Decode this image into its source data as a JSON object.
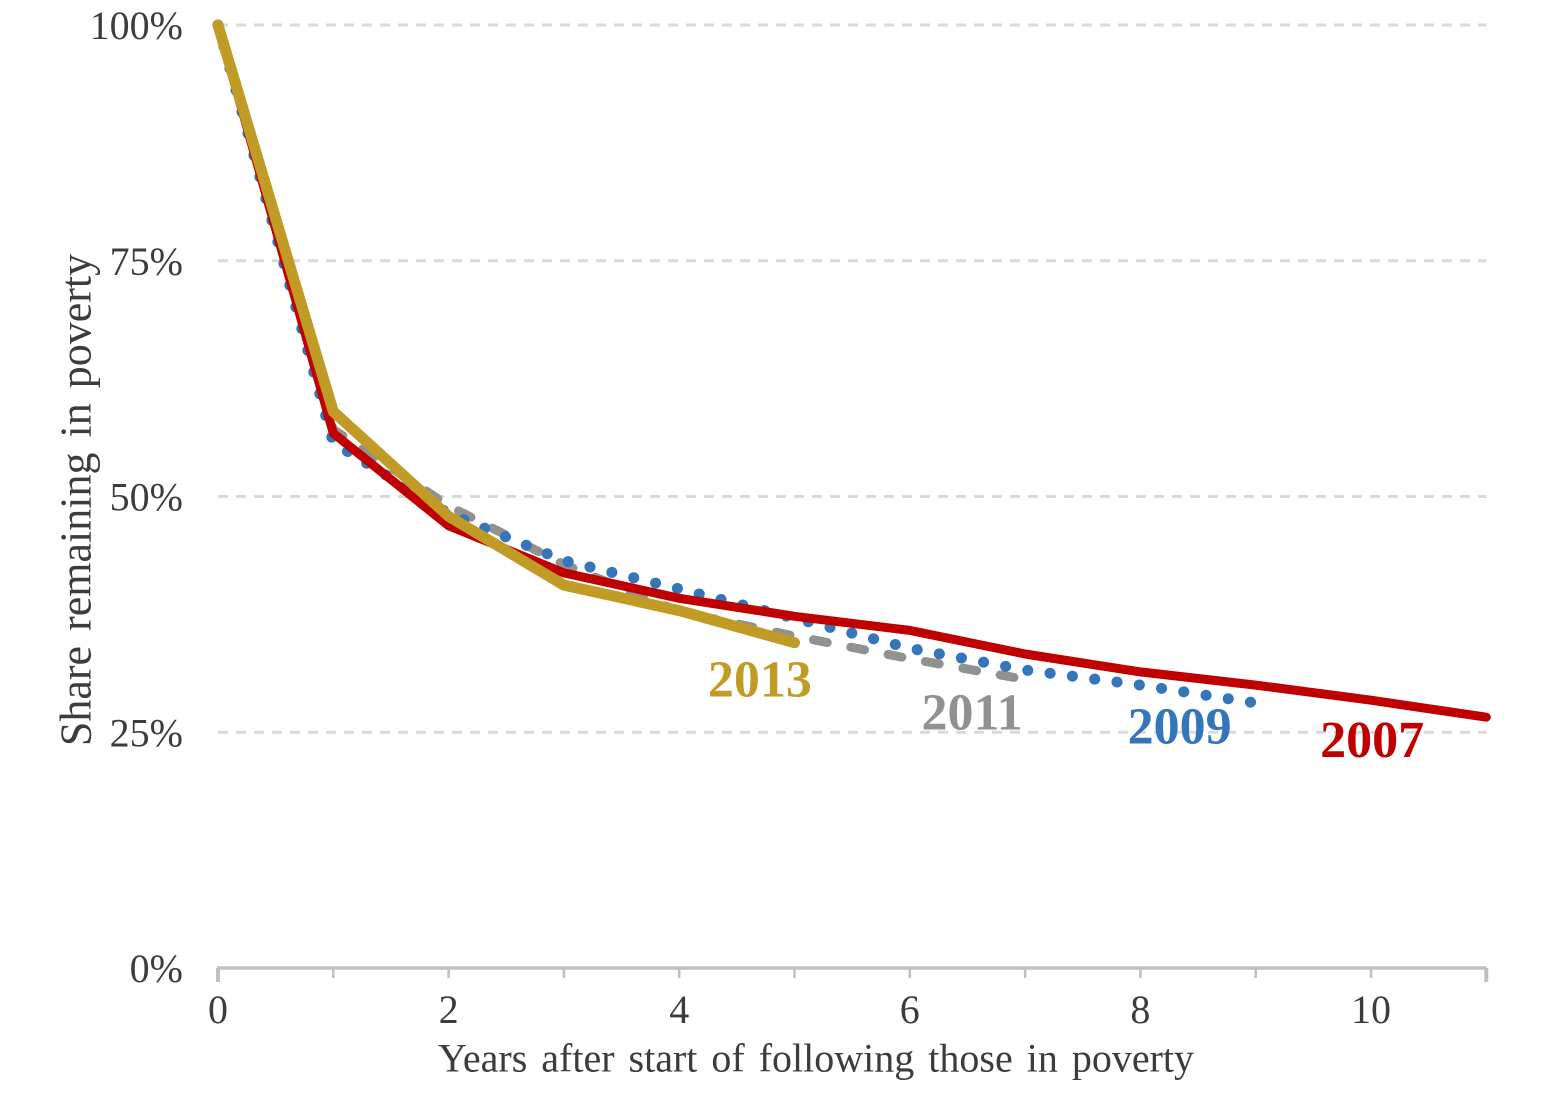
{
  "figure": {
    "y_axis_title": "Share remaining in poverty",
    "x_axis_title": "Years after start of following those in poverty"
  },
  "chart_data": {
    "type": "line",
    "title": "",
    "xlabel": "Years after start of following those in poverty",
    "ylabel": "Share remaining in poverty",
    "xlim": [
      0,
      11
    ],
    "ylim": [
      0,
      100
    ],
    "x_ticks": [
      0,
      2,
      4,
      6,
      8,
      10
    ],
    "y_ticks": [
      {
        "label": "100%",
        "value": 100
      },
      {
        "label": "75%",
        "value": 75
      },
      {
        "label": "50%",
        "value": 50
      },
      {
        "label": "25%",
        "value": 25
      },
      {
        "label": "0%",
        "value": 0
      }
    ],
    "grid": {
      "horizontal": true,
      "style": "dashed",
      "color": "#d9d9d9"
    },
    "axis_color": "#bfbfbf",
    "tick_label_color": "#3c3c3c",
    "legend": "inline-labels-near-line-ends",
    "series": [
      {
        "name": "2011",
        "color": "#919191",
        "line_style": "dashed",
        "line_width": 9,
        "x": [
          0,
          1,
          2,
          3,
          4,
          5,
          6,
          7
        ],
        "values": [
          100,
          57.1,
          49.0,
          42.8,
          37.8,
          35.2,
          32.8,
          30.6
        ],
        "label": {
          "text": "2011",
          "x": 6.54,
          "y": 27.2
        }
      },
      {
        "name": "2009",
        "color": "#3575b9",
        "line_style": "dotted",
        "line_width": 11,
        "x": [
          0,
          1,
          2,
          3,
          4,
          5,
          6,
          7,
          8,
          9
        ],
        "values": [
          100,
          55.7,
          48.2,
          43.2,
          40.2,
          37.1,
          33.9,
          31.6,
          30.0,
          28.1
        ],
        "label": {
          "text": "2009",
          "x": 8.34,
          "y": 25.7
        }
      },
      {
        "name": "2007",
        "color": "#c00000",
        "line_style": "solid",
        "line_width": 9,
        "x": [
          0,
          1,
          2,
          3,
          4,
          5,
          6,
          7,
          8,
          9,
          10,
          11
        ],
        "values": [
          100,
          56.7,
          46.9,
          41.9,
          39.2,
          37.3,
          35.8,
          33.3,
          31.4,
          30.0,
          28.4,
          26.6
        ],
        "label": {
          "text": "2007",
          "x": 10.01,
          "y": 24.3
        }
      },
      {
        "name": "2013",
        "color": "#c09b25",
        "line_style": "solid",
        "line_width": 11,
        "x": [
          0,
          1,
          2,
          3,
          4,
          5
        ],
        "values": [
          100,
          59.0,
          47.9,
          40.6,
          37.9,
          34.5
        ],
        "label": {
          "text": "2013",
          "x": 4.7,
          "y": 30.7
        }
      }
    ]
  }
}
